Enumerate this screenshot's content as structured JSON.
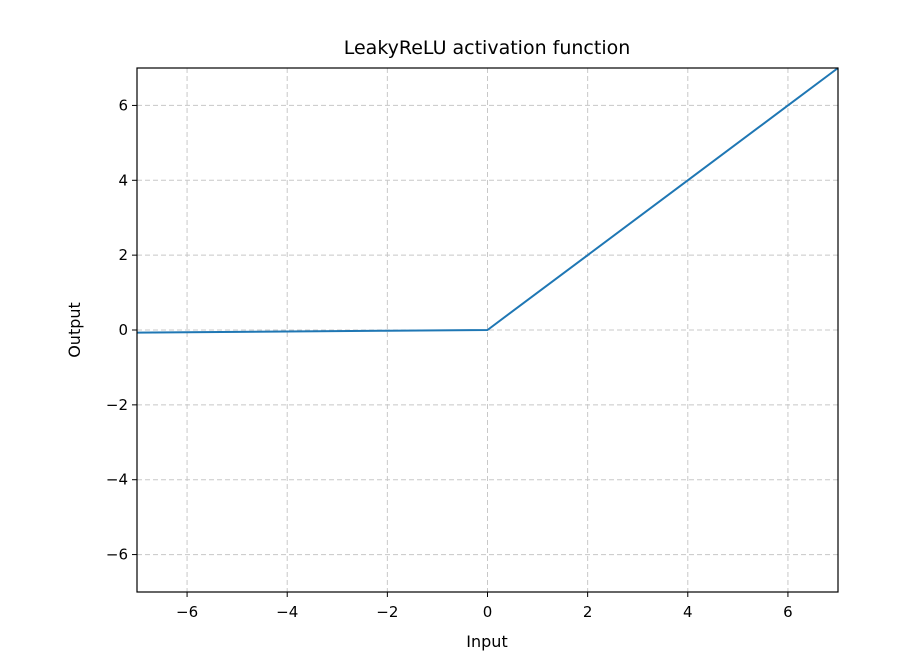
{
  "chart_data": {
    "type": "line",
    "title": "LeakyReLU activation function",
    "xlabel": "Input",
    "ylabel": "Output",
    "xlim": [
      -7,
      7
    ],
    "ylim": [
      -7,
      7
    ],
    "xticks": [
      -6,
      -4,
      -2,
      0,
      2,
      4,
      6
    ],
    "yticks": [
      -6,
      -4,
      -2,
      0,
      2,
      4,
      6
    ],
    "grid": true,
    "grid_style": "dashed",
    "series": [
      {
        "color": "#1f77b4",
        "x": [
          -7,
          -6,
          -4,
          -2,
          0,
          2,
          4,
          6,
          7
        ],
        "y": [
          -0.07,
          -0.06,
          -0.04,
          -0.02,
          0,
          2,
          4,
          6,
          7
        ]
      }
    ]
  }
}
